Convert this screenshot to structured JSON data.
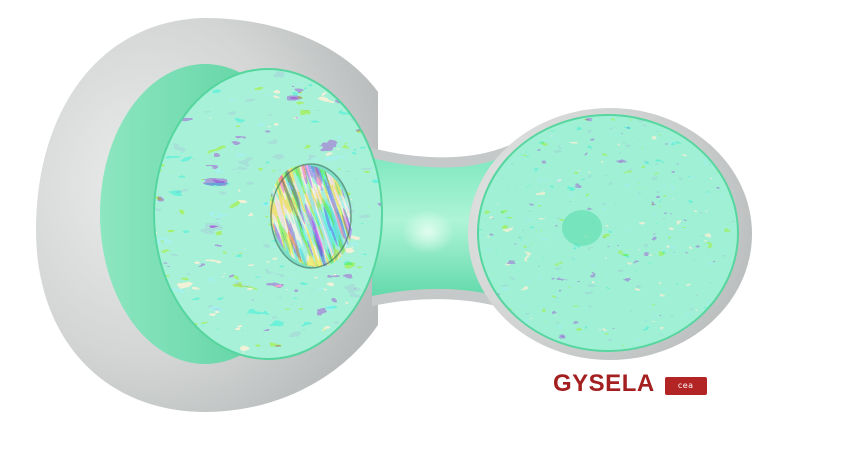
{
  "brand": {
    "title": "GYSELA",
    "logo_mark": "cea",
    "title_color": "#a41f1f",
    "logo_color": "#b32424"
  },
  "colors": {
    "background": "#ffffff",
    "shell": "#c9cbcb",
    "plasma": "#66e4b4",
    "fluct_hot": "#d42a1a",
    "fluct_warm": "#f2c02c",
    "fluct_cool": "#1c5ad8",
    "fluct_cold": "#13237a"
  }
}
